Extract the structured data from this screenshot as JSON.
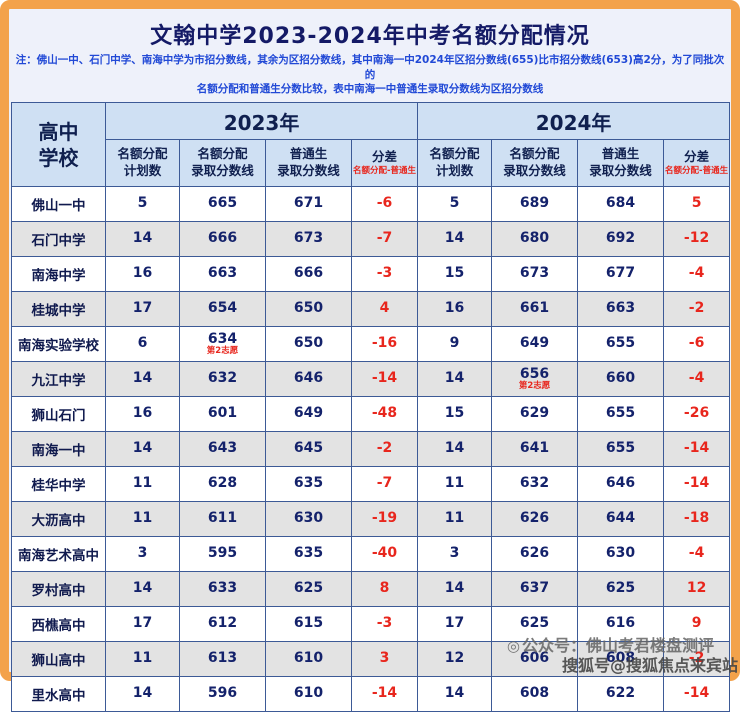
{
  "chart_data": {
    "type": "table",
    "title": "文翰中学2023-2024年中考名额分配情况",
    "note": [
      "注：佛山一中、石门中学、南海中学为市招分数线，其余为区招分数线，其中南海一中2024年区招分数线(655)比市招分数线(653)高2分，为了同批次的",
      "名额分配和普通生分数比较，表中南海一中普通生录取分数线为区招分数线"
    ],
    "corner_line1": "高中",
    "corner_line2": "学校",
    "year_groups": [
      "2023年",
      "2024年"
    ],
    "sub_headers": [
      {
        "line1": "名额分配",
        "line2": "计划数"
      },
      {
        "line1": "名额分配",
        "line2": "录取分数线"
      },
      {
        "line1": "普通生",
        "line2": "录取分数线"
      },
      {
        "line1": "分差",
        "line2": "名额分配-普通生"
      }
    ],
    "rows": [
      {
        "school": "佛山一中",
        "values": [
          "5",
          "665",
          "671",
          "-6",
          "5",
          "689",
          "684",
          "5"
        ],
        "note_2023_quota": "",
        "note_2024_quota": ""
      },
      {
        "school": "石门中学",
        "values": [
          "14",
          "666",
          "673",
          "-7",
          "14",
          "680",
          "692",
          "-12"
        ],
        "note_2023_quota": "",
        "note_2024_quota": ""
      },
      {
        "school": "南海中学",
        "values": [
          "16",
          "663",
          "666",
          "-3",
          "15",
          "673",
          "677",
          "-4"
        ],
        "note_2023_quota": "",
        "note_2024_quota": ""
      },
      {
        "school": "桂城中学",
        "values": [
          "17",
          "654",
          "650",
          "4",
          "16",
          "661",
          "663",
          "-2"
        ],
        "note_2023_quota": "",
        "note_2024_quota": ""
      },
      {
        "school": "南海实验学校",
        "values": [
          "6",
          "634",
          "650",
          "-16",
          "9",
          "649",
          "655",
          "-6"
        ],
        "note_2023_quota": "第2志愿",
        "note_2024_quota": ""
      },
      {
        "school": "九江中学",
        "values": [
          "14",
          "632",
          "646",
          "-14",
          "14",
          "656",
          "660",
          "-4"
        ],
        "note_2023_quota": "",
        "note_2024_quota": "第2志愿"
      },
      {
        "school": "狮山石门",
        "values": [
          "16",
          "601",
          "649",
          "-48",
          "15",
          "629",
          "655",
          "-26"
        ],
        "note_2023_quota": "",
        "note_2024_quota": ""
      },
      {
        "school": "南海一中",
        "values": [
          "14",
          "643",
          "645",
          "-2",
          "14",
          "641",
          "655",
          "-14"
        ],
        "note_2023_quota": "",
        "note_2024_quota": ""
      },
      {
        "school": "桂华中学",
        "values": [
          "11",
          "628",
          "635",
          "-7",
          "11",
          "632",
          "646",
          "-14"
        ],
        "note_2023_quota": "",
        "note_2024_quota": ""
      },
      {
        "school": "大沥高中",
        "values": [
          "11",
          "611",
          "630",
          "-19",
          "11",
          "626",
          "644",
          "-18"
        ],
        "note_2023_quota": "",
        "note_2024_quota": ""
      },
      {
        "school": "南海艺术高中",
        "values": [
          "3",
          "595",
          "635",
          "-40",
          "3",
          "626",
          "630",
          "-4"
        ],
        "note_2023_quota": "",
        "note_2024_quota": ""
      },
      {
        "school": "罗村高中",
        "values": [
          "14",
          "633",
          "625",
          "8",
          "14",
          "637",
          "625",
          "12"
        ],
        "note_2023_quota": "",
        "note_2024_quota": ""
      },
      {
        "school": "西樵高中",
        "values": [
          "17",
          "612",
          "615",
          "-3",
          "17",
          "625",
          "616",
          "9"
        ],
        "note_2023_quota": "",
        "note_2024_quota": ""
      },
      {
        "school": "狮山高中",
        "values": [
          "11",
          "613",
          "610",
          "3",
          "12",
          "606",
          "608",
          "-2"
        ],
        "note_2023_quota": "",
        "note_2024_quota": ""
      },
      {
        "school": "里水高中",
        "values": [
          "14",
          "596",
          "610",
          "-14",
          "14",
          "608",
          "622",
          "-14"
        ],
        "note_2023_quota": "",
        "note_2024_quota": ""
      }
    ]
  },
  "watermarks": {
    "wechat_logo": "◎",
    "wechat": "公众号：佛山考君楼盘测评",
    "sohu": "搜狐号@搜狐焦点来宾站"
  },
  "colors": {
    "frame_orange": "#f3a24b",
    "header_blue": "#cfe0f3",
    "row_alt_gray": "#e3e3e3",
    "grid_border": "#3d5a96",
    "title_navy": "#141a66",
    "note_blue": "#2149d6",
    "diff_red": "#e8261d",
    "value_navy": "#14226b"
  }
}
